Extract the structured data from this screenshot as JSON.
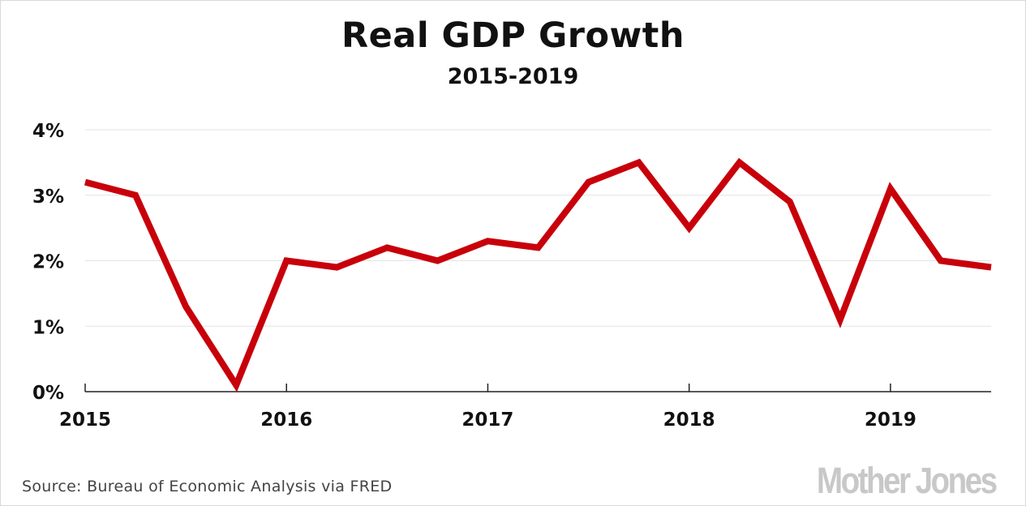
{
  "chart_data": {
    "type": "line",
    "title": "Real GDP Growth",
    "subtitle": "2015-2019",
    "x_tick_labels": [
      "2015",
      "2016",
      "2017",
      "2018",
      "2019"
    ],
    "y_tick_labels": [
      "0%",
      "1%",
      "2%",
      "3%",
      "4%"
    ],
    "ylim": [
      0,
      4
    ],
    "xlim": [
      2015.0,
      2019.5
    ],
    "grid": true,
    "line_color": "#c8000a",
    "series": [
      {
        "x": [
          2015.0,
          2015.25,
          2015.5,
          2015.75,
          2016.0,
          2016.25,
          2016.5,
          2016.75,
          2017.0,
          2017.25,
          2017.5,
          2017.75,
          2018.0,
          2018.25,
          2018.5,
          2018.75,
          2019.0,
          2019.25,
          2019.5
        ],
        "values": [
          3.2,
          3.0,
          1.3,
          0.1,
          2.0,
          1.9,
          2.2,
          2.0,
          2.3,
          2.2,
          3.2,
          3.5,
          2.5,
          3.5,
          2.9,
          1.1,
          3.1,
          2.0,
          1.9
        ]
      }
    ]
  },
  "footer": {
    "source": "Source: Bureau of Economic Analysis via FRED",
    "logo_text": "MotherJones"
  }
}
